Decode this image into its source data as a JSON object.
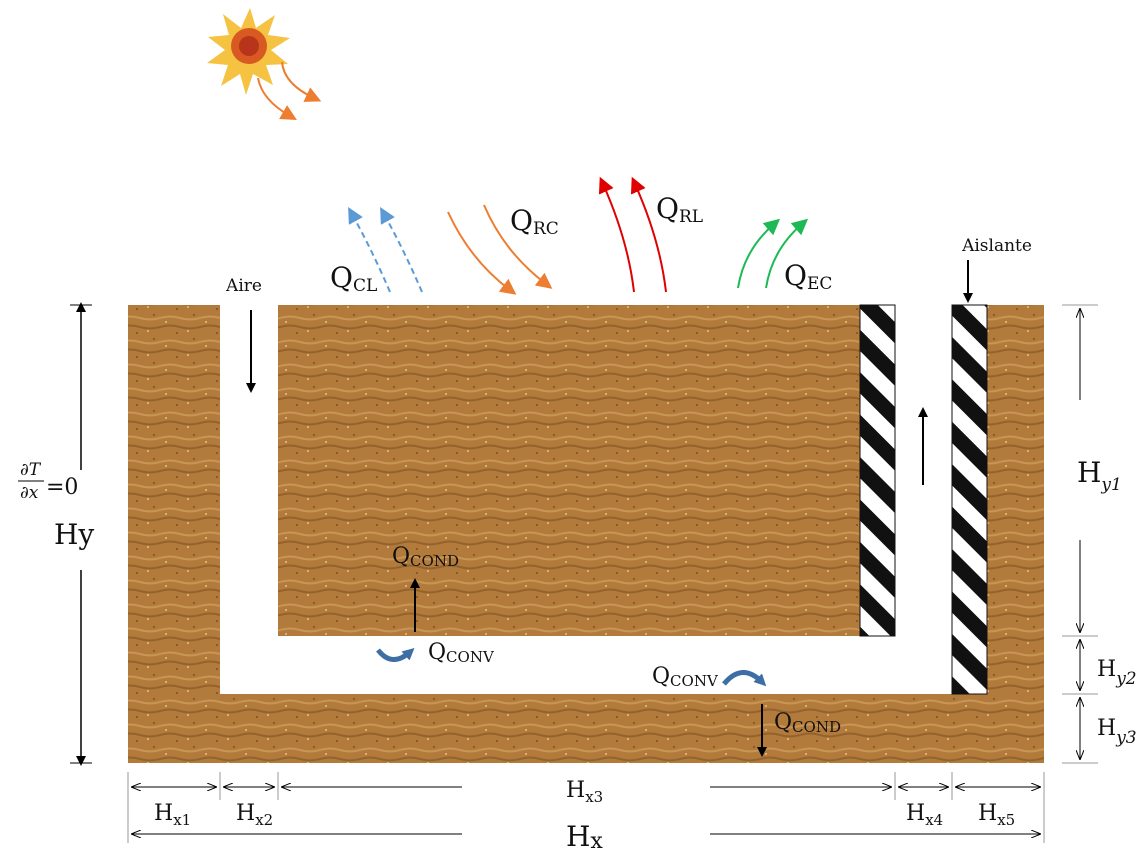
{
  "labels": {
    "aire": "Aire",
    "aislante": "Aislante",
    "boundary_num": "∂T",
    "boundary_den": "∂x",
    "boundary_eq": "=0",
    "hy": "Hy"
  },
  "heat_flows": {
    "qcl": {
      "main": "Q",
      "sub": "CL"
    },
    "qrc": {
      "main": "Q",
      "sub": "RC"
    },
    "qrl": {
      "main": "Q",
      "sub": "RL"
    },
    "qec": {
      "main": "Q",
      "sub": "EC"
    },
    "qcond_upper": {
      "main": "Q",
      "sub": "COND"
    },
    "qconv_left": {
      "main": "Q",
      "sub": "CONV"
    },
    "qconv_right": {
      "main": "Q",
      "sub": "CONV"
    },
    "qcond_lower": {
      "main": "Q",
      "sub": "COND"
    }
  },
  "dimensions": {
    "hx": {
      "main": "H",
      "sub": "x"
    },
    "hx1": {
      "main": "H",
      "sub": "x1"
    },
    "hx2": {
      "main": "H",
      "sub": "x2"
    },
    "hx3": {
      "main": "H",
      "sub": "x3"
    },
    "hx4": {
      "main": "H",
      "sub": "x4"
    },
    "hx5": {
      "main": "H",
      "sub": "x5"
    },
    "hy1": {
      "main": "H",
      "sub": "y1"
    },
    "hy2": {
      "main": "H",
      "sub": "y2"
    },
    "hy3": {
      "main": "H",
      "sub": "y3"
    }
  },
  "colors": {
    "sand": "#b0793a",
    "sand_dark": "#8a5a26",
    "cl_arrow": "#5b9bd5",
    "rc_arrow": "#ed7d31",
    "rl_arrow": "#e00000",
    "ec_arrow": "#1db954",
    "conv_arrow": "#3d6fa5",
    "sun_core": "#b8341b",
    "sun_rays": "#f5c242"
  },
  "icons": {
    "sun": "sun-icon",
    "insulation": "hatched-insulation"
  }
}
